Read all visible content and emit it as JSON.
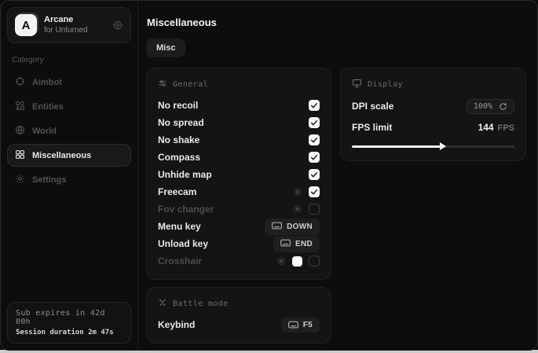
{
  "sidebar": {
    "brand": {
      "logo_letter": "A",
      "name": "Arcane",
      "subtitle": "for Unturned"
    },
    "category_label": "Category",
    "items": [
      {
        "label": "Aimbot",
        "icon": "crosshair-icon",
        "active": false
      },
      {
        "label": "Entities",
        "icon": "entities-icon",
        "active": false
      },
      {
        "label": "World",
        "icon": "globe-icon",
        "active": false
      },
      {
        "label": "Miscellaneous",
        "icon": "grid-icon",
        "active": true
      },
      {
        "label": "Settings",
        "icon": "gear-icon",
        "active": false
      }
    ],
    "status": {
      "line1": "Sub expires in 42d 00h",
      "line2": "Session duration 2m 47s"
    }
  },
  "header": {
    "title": "Miscellaneous",
    "tabs": [
      {
        "label": "Misc",
        "active": true
      }
    ]
  },
  "panels": {
    "general": {
      "title": "General",
      "icon": "sliders-icon",
      "rows": [
        {
          "label": "No recoil",
          "type": "checkbox",
          "checked": true
        },
        {
          "label": "No spread",
          "type": "checkbox",
          "checked": true
        },
        {
          "label": "No shake",
          "type": "checkbox",
          "checked": true
        },
        {
          "label": "Compass",
          "type": "checkbox",
          "checked": true
        },
        {
          "label": "Unhide map",
          "type": "checkbox",
          "checked": true
        },
        {
          "label": "Freecam",
          "type": "checkbox-gear",
          "checked": true
        },
        {
          "label": "Fov changer",
          "type": "checkbox-gear",
          "checked": false
        },
        {
          "label": "Menu key",
          "type": "keybind",
          "value": "DOWN"
        },
        {
          "label": "Unload key",
          "type": "keybind",
          "value": "END"
        },
        {
          "label": "Crosshair",
          "type": "checkbox-gear-color",
          "checked": false,
          "color": "#ffffff"
        }
      ]
    },
    "display": {
      "title": "Display",
      "icon": "monitor-icon",
      "dpi": {
        "label": "DPI scale",
        "value": "100%"
      },
      "fps": {
        "label": "FPS limit",
        "value": "144",
        "unit": "FPS",
        "percent": 56
      }
    },
    "battle": {
      "title": "Battle mode",
      "icon": "swords-icon",
      "keybind_label": "Keybind",
      "keybind_value": "F5"
    }
  },
  "colors": {
    "checkbox_on": "#f5f5f5",
    "crosshair_swatch": "#ffffff",
    "panel_bg": "#141414",
    "window_bg": "#0d0d0d"
  }
}
